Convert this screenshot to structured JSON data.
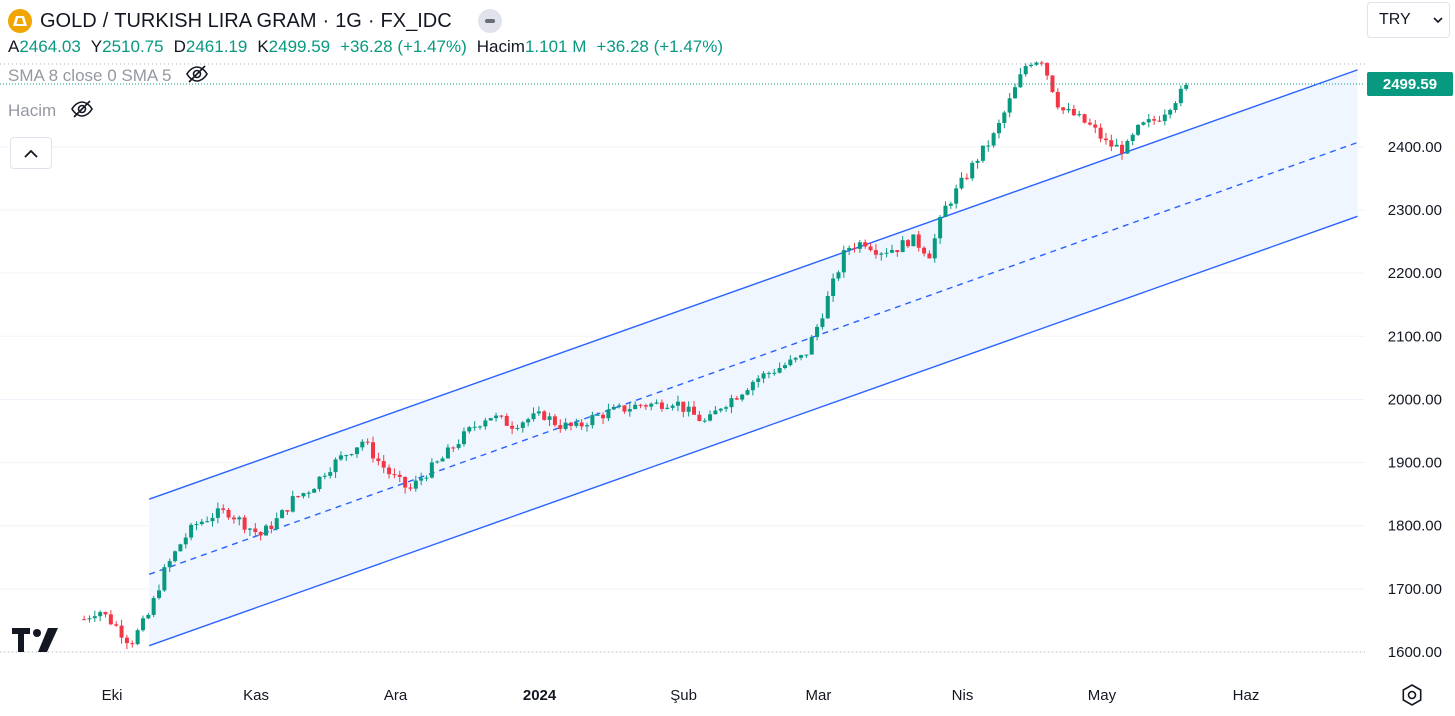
{
  "header": {
    "symbol": "GOLD",
    "separator": "/",
    "quote": "TURKISH LIRA GRAM",
    "interval": "1G",
    "exchange": "FX_IDC",
    "dot": "·"
  },
  "ohlc": {
    "open_label": "A",
    "open": "2464.03",
    "high_label": "Y",
    "high": "2510.75",
    "low_label": "D",
    "low": "2461.19",
    "close_label": "K",
    "close": "2499.59",
    "change": "+36.28 (+1.47%)",
    "volume_label": "Hacim",
    "volume": "1.101 M",
    "volume_change": "+36.28 (+1.47%)"
  },
  "indicators": {
    "sma_label": "SMA 8 close 0 SMA 5",
    "volume_label": "Hacim"
  },
  "currency": {
    "label": "TRY"
  },
  "last_price": {
    "label": "2499.59",
    "value": 2499.59
  },
  "colors": {
    "up": "#089981",
    "down": "#f23645",
    "channel": "#2962ff",
    "channel_fill": "#f0f6ff",
    "last_price_bg": "#089981"
  },
  "price_axis": {
    "ticks": [
      "2400.00",
      "2300.00",
      "2200.00",
      "2100.00",
      "2000.00",
      "1900.00",
      "1800.00",
      "1700.00",
      "1600.00"
    ]
  },
  "time_axis": {
    "labels": [
      "Eki",
      "Kas",
      "Ara",
      "2024",
      "Şub",
      "Mar",
      "Nis",
      "May",
      "Haz"
    ]
  },
  "chart_data": {
    "type": "candlestick",
    "title": "GOLD / TURKISH LIRA GRAM · 1G · FX_IDC",
    "ylim": [
      1600,
      2620
    ],
    "y_ticks": [
      1600,
      1700,
      1800,
      1900,
      2000,
      2100,
      2200,
      2300,
      2400
    ],
    "x_ticks": [
      {
        "label": "Eki",
        "date": "2023-10-01"
      },
      {
        "label": "Kas",
        "date": "2023-11-01"
      },
      {
        "label": "Ara",
        "date": "2023-12-01"
      },
      {
        "label": "2024",
        "date": "2024-01-01"
      },
      {
        "label": "Şub",
        "date": "2024-02-01"
      },
      {
        "label": "Mar",
        "date": "2024-03-01"
      },
      {
        "label": "Nis",
        "date": "2024-04-01"
      },
      {
        "label": "May",
        "date": "2024-05-01"
      },
      {
        "label": "Haz",
        "date": "2024-06-01"
      }
    ],
    "close_series": [
      {
        "date": "2023-09-25",
        "close": 1652
      },
      {
        "date": "2023-09-28",
        "close": 1668
      },
      {
        "date": "2023-10-02",
        "close": 1640
      },
      {
        "date": "2023-10-05",
        "close": 1614
      },
      {
        "date": "2023-10-09",
        "close": 1660
      },
      {
        "date": "2023-10-12",
        "close": 1724
      },
      {
        "date": "2023-10-16",
        "close": 1775
      },
      {
        "date": "2023-10-19",
        "close": 1802
      },
      {
        "date": "2023-10-23",
        "close": 1818
      },
      {
        "date": "2023-10-26",
        "close": 1822
      },
      {
        "date": "2023-10-30",
        "close": 1800
      },
      {
        "date": "2023-11-02",
        "close": 1785
      },
      {
        "date": "2023-11-06",
        "close": 1813
      },
      {
        "date": "2023-11-09",
        "close": 1842
      },
      {
        "date": "2023-11-13",
        "close": 1860
      },
      {
        "date": "2023-11-16",
        "close": 1888
      },
      {
        "date": "2023-11-20",
        "close": 1912
      },
      {
        "date": "2023-11-24",
        "close": 1935
      },
      {
        "date": "2023-11-27",
        "close": 1905
      },
      {
        "date": "2023-11-30",
        "close": 1880
      },
      {
        "date": "2023-12-04",
        "close": 1856
      },
      {
        "date": "2023-12-07",
        "close": 1880
      },
      {
        "date": "2023-12-11",
        "close": 1905
      },
      {
        "date": "2023-12-14",
        "close": 1930
      },
      {
        "date": "2023-12-18",
        "close": 1958
      },
      {
        "date": "2023-12-21",
        "close": 1975
      },
      {
        "date": "2023-12-26",
        "close": 1960
      },
      {
        "date": "2023-12-29",
        "close": 1968
      },
      {
        "date": "2024-01-02",
        "close": 1975
      },
      {
        "date": "2024-01-05",
        "close": 1960
      },
      {
        "date": "2024-01-09",
        "close": 1955
      },
      {
        "date": "2024-01-12",
        "close": 1970
      },
      {
        "date": "2024-01-16",
        "close": 1980
      },
      {
        "date": "2024-01-19",
        "close": 1985
      },
      {
        "date": "2024-01-23",
        "close": 1992
      },
      {
        "date": "2024-01-26",
        "close": 1992
      },
      {
        "date": "2024-01-30",
        "close": 1998
      },
      {
        "date": "2024-02-02",
        "close": 1980
      },
      {
        "date": "2024-02-06",
        "close": 1962
      },
      {
        "date": "2024-02-09",
        "close": 1990
      },
      {
        "date": "2024-02-13",
        "close": 2010
      },
      {
        "date": "2024-02-16",
        "close": 2030
      },
      {
        "date": "2024-02-20",
        "close": 2045
      },
      {
        "date": "2024-02-23",
        "close": 2055
      },
      {
        "date": "2024-02-27",
        "close": 2068
      },
      {
        "date": "2024-03-01",
        "close": 2120
      },
      {
        "date": "2024-03-04",
        "close": 2180
      },
      {
        "date": "2024-03-07",
        "close": 2240
      },
      {
        "date": "2024-03-11",
        "close": 2250
      },
      {
        "date": "2024-03-14",
        "close": 2235
      },
      {
        "date": "2024-03-18",
        "close": 2240
      },
      {
        "date": "2024-03-21",
        "close": 2255
      },
      {
        "date": "2024-03-25",
        "close": 2230
      },
      {
        "date": "2024-03-28",
        "close": 2300
      },
      {
        "date": "2024-04-01",
        "close": 2345
      },
      {
        "date": "2024-04-04",
        "close": 2380
      },
      {
        "date": "2024-04-08",
        "close": 2420
      },
      {
        "date": "2024-04-11",
        "close": 2470
      },
      {
        "date": "2024-04-15",
        "close": 2535
      },
      {
        "date": "2024-04-18",
        "close": 2540
      },
      {
        "date": "2024-04-22",
        "close": 2460
      },
      {
        "date": "2024-04-25",
        "close": 2450
      },
      {
        "date": "2024-04-29",
        "close": 2430
      },
      {
        "date": "2024-05-02",
        "close": 2405
      },
      {
        "date": "2024-05-06",
        "close": 2395
      },
      {
        "date": "2024-05-09",
        "close": 2430
      },
      {
        "date": "2024-05-13",
        "close": 2445
      },
      {
        "date": "2024-05-16",
        "close": 2470
      },
      {
        "date": "2024-05-20",
        "close": 2499.59
      }
    ],
    "regression_channel": {
      "start_date": "2023-10-09",
      "upper": {
        "start": 1842,
        "end": 2522
      },
      "mid": {
        "start": 1723,
        "end": 2407
      },
      "lower": {
        "start": 1610,
        "end": 2290
      },
      "extend_to_date": "2024-06-25"
    }
  }
}
